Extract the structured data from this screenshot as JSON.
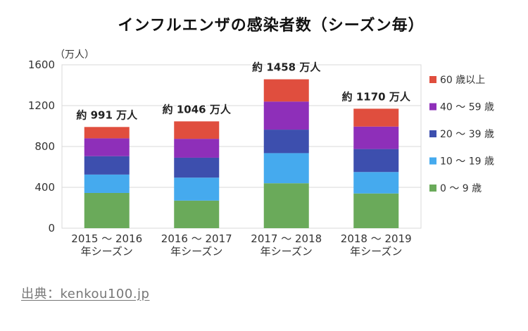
{
  "chart_data": {
    "type": "bar",
    "stacked": true,
    "title": "インフルエンザの感染者数（シーズン毎）",
    "unit_label": "（万人）",
    "ylim": [
      0,
      1600
    ],
    "yticks": [
      0,
      400,
      800,
      1200,
      1600
    ],
    "grid": true,
    "legend_position": "right",
    "categories": [
      [
        "2015 ～ 2016",
        "年シーズン"
      ],
      [
        "2016 ～ 2017",
        "年シーズン"
      ],
      [
        "2017 ～ 2018",
        "年シーズン"
      ],
      [
        "2018 ～ 2019",
        "年シーズン"
      ]
    ],
    "totals": [
      991,
      1046,
      1458,
      1170
    ],
    "total_labels": [
      "約 991 万人",
      "約 1046 万人",
      "約 1458 万人",
      "約 1170 万人"
    ],
    "series": [
      {
        "name": "0 ～ 9 歳",
        "color": "#6aaa5a",
        "values": [
          345,
          270,
          440,
          340
        ]
      },
      {
        "name": "10 ～ 19 歳",
        "color": "#45aaee",
        "values": [
          180,
          225,
          295,
          210
        ]
      },
      {
        "name": "20 ～ 39 歳",
        "color": "#3d4fae",
        "values": [
          180,
          195,
          230,
          225
        ]
      },
      {
        "name": "40 ～ 59 歳",
        "color": "#8e2fb9",
        "values": [
          175,
          185,
          275,
          220
        ]
      },
      {
        "name": "60 歳以上",
        "color": "#e04e3e",
        "values": [
          111,
          171,
          218,
          175
        ]
      }
    ]
  },
  "source": "出典：kenkou100.jp"
}
